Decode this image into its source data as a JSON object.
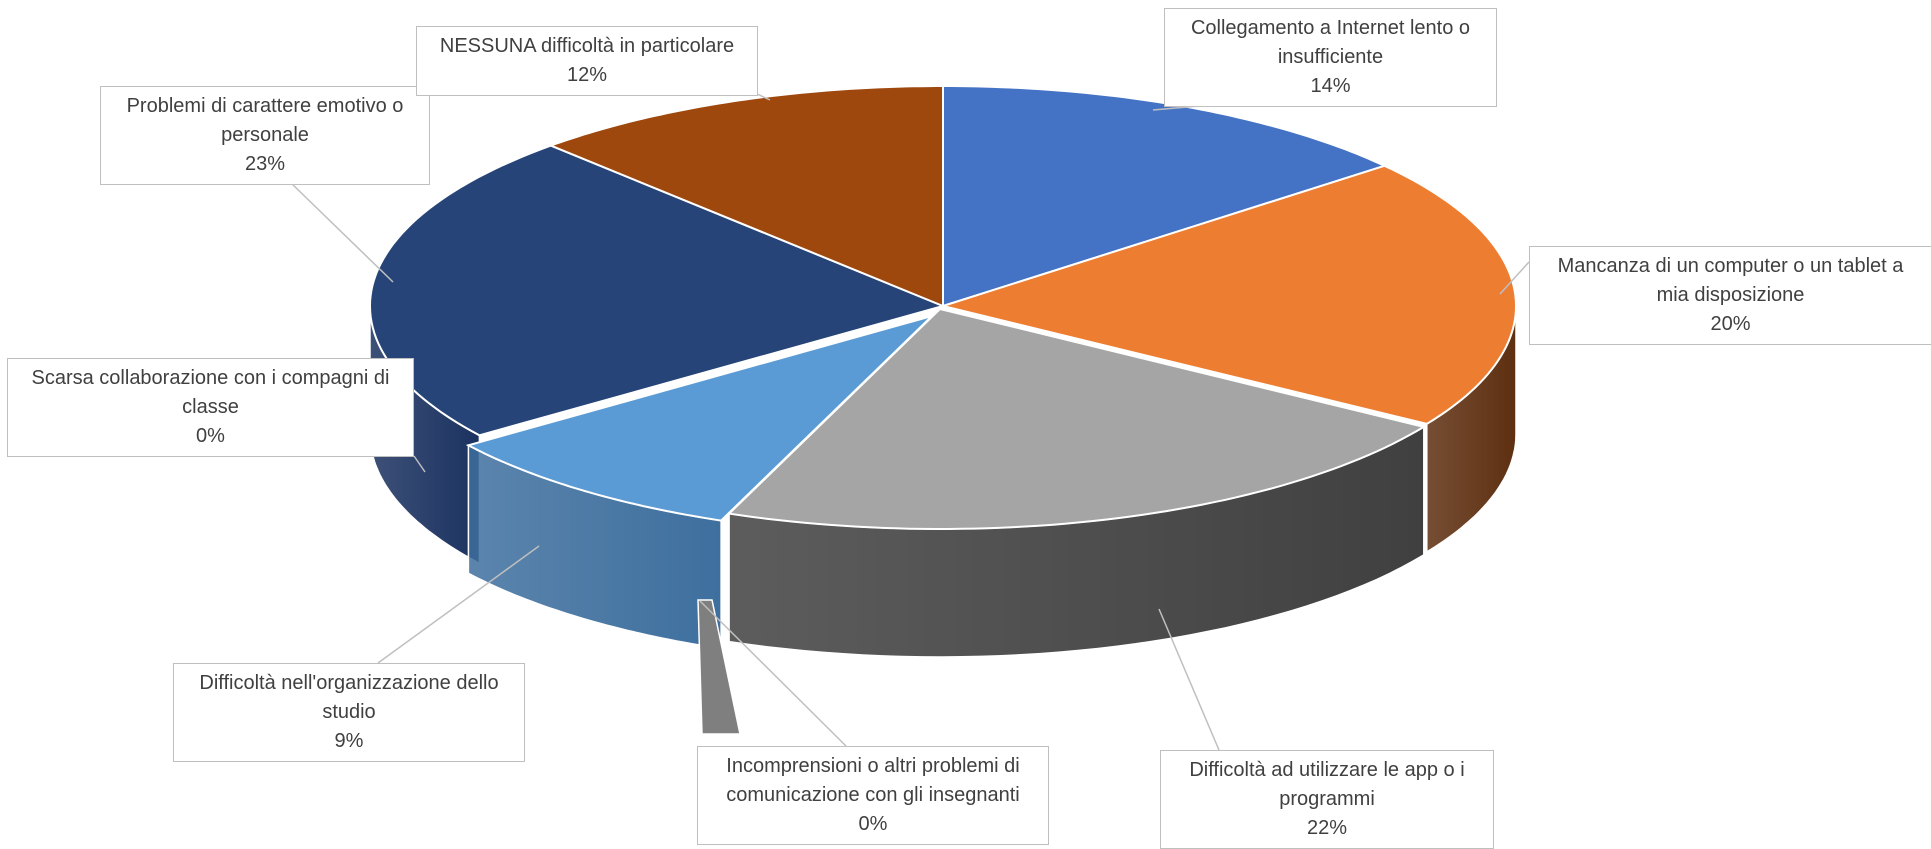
{
  "chart_data": {
    "type": "pie",
    "title": "",
    "style": "3d-exploded-pie",
    "slices": [
      {
        "label": "Collegamento a Internet lento o insufficiente",
        "value": 14,
        "value_label": "14%",
        "color": "#4472c4",
        "side_color": "#2f528f"
      },
      {
        "label": "Mancanza di un computer o un tablet a mia disposizione",
        "value": 20,
        "value_label": "20%",
        "color": "#ed7d31",
        "side_color": "#5e2f10"
      },
      {
        "label": "Difficoltà ad utilizzare le app o i programmi",
        "value": 22,
        "value_label": "22%",
        "color": "#a5a5a5",
        "side_color": "#404040"
      },
      {
        "label": "Incomprensioni o altri problemi di comunicazione con gli insegnanti",
        "value": 0,
        "value_label": "0%",
        "color": "#ffc000",
        "side_color": "#7f7f7f"
      },
      {
        "label": "Difficoltà nell'organizzazione dello studio",
        "value": 9,
        "value_label": "9%",
        "color": "#5b9bd5",
        "side_color": "#3e6f9e"
      },
      {
        "label": "Scarsa collaborazione con i compagni di classe",
        "value": 0,
        "value_label": "0%",
        "color": "#70ad47",
        "side_color": "#1f3864"
      },
      {
        "label": "Problemi di carattere emotivo o personale",
        "value": 23,
        "value_label": "23%",
        "color": "#264478",
        "side_color": "#1b3260"
      },
      {
        "label": "NESSUNA difficoltà in particolare",
        "value": 12,
        "value_label": "12%",
        "color": "#9e480e",
        "side_color": "#6b300a"
      }
    ]
  },
  "labels": [
    {
      "lines": [
        "Collegamento a Internet lento o",
        "insufficiente"
      ],
      "value": "14%"
    },
    {
      "lines": [
        "Mancanza di un computer o un tablet a",
        "mia disposizione"
      ],
      "value": "20%"
    },
    {
      "lines": [
        "Difficoltà ad utilizzare le app o i",
        "programmi"
      ],
      "value": "22%"
    },
    {
      "lines": [
        "Incomprensioni o altri problemi di",
        "comunicazione con gli insegnanti"
      ],
      "value": "0%"
    },
    {
      "lines": [
        "Difficoltà nell'organizzazione dello",
        "studio"
      ],
      "value": "9%"
    },
    {
      "lines": [
        "Scarsa collaborazione con i compagni di",
        "classe"
      ],
      "value": "0%"
    },
    {
      "lines": [
        "Problemi di carattere emotivo o",
        "personale"
      ],
      "value": "23%"
    },
    {
      "lines": [
        "NESSUNA difficoltà in particolare"
      ],
      "value": "12%"
    }
  ]
}
